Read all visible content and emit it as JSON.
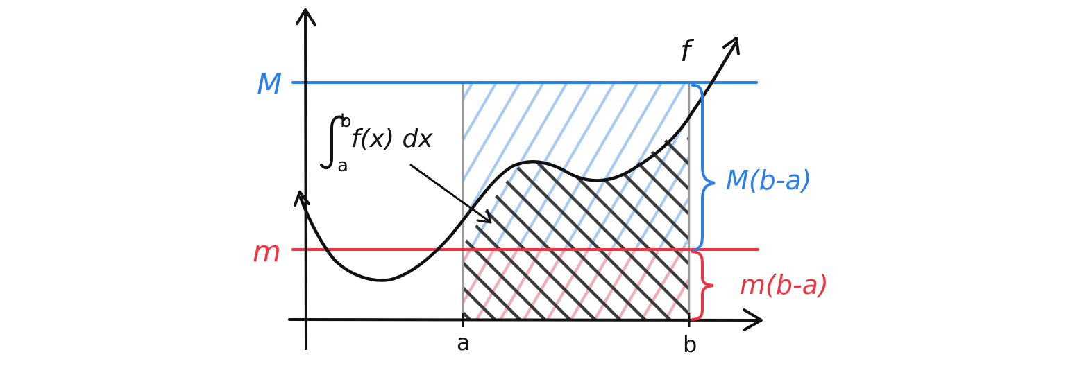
{
  "labels": {
    "M": "M",
    "m": "m",
    "a": "a",
    "b": "b",
    "f": "f",
    "integral_upper": "b",
    "integral_lower": "a",
    "integral_body": "f(x) dx",
    "upper_area": "M(b-a)",
    "lower_area": "m(b-a)"
  },
  "colors": {
    "upper_bound": "#2c7fe6",
    "lower_bound": "#ec3542",
    "upper_hatch": "#a7c9f2",
    "lower_hatch": "#f3aeb4",
    "curve": "#111111",
    "integral_hatch": "#3a3a3a",
    "guide": "#9a9a9a"
  },
  "icons": {
    "x_axis": "right-arrow-icon",
    "y_axis": "up-arrow-icon",
    "curve_end_left": "arrowhead-icon",
    "curve_end_right": "arrowhead-icon",
    "pointer": "arrow-icon",
    "brace_upper": "curly-brace-icon",
    "brace_lower": "curly-brace-icon"
  }
}
